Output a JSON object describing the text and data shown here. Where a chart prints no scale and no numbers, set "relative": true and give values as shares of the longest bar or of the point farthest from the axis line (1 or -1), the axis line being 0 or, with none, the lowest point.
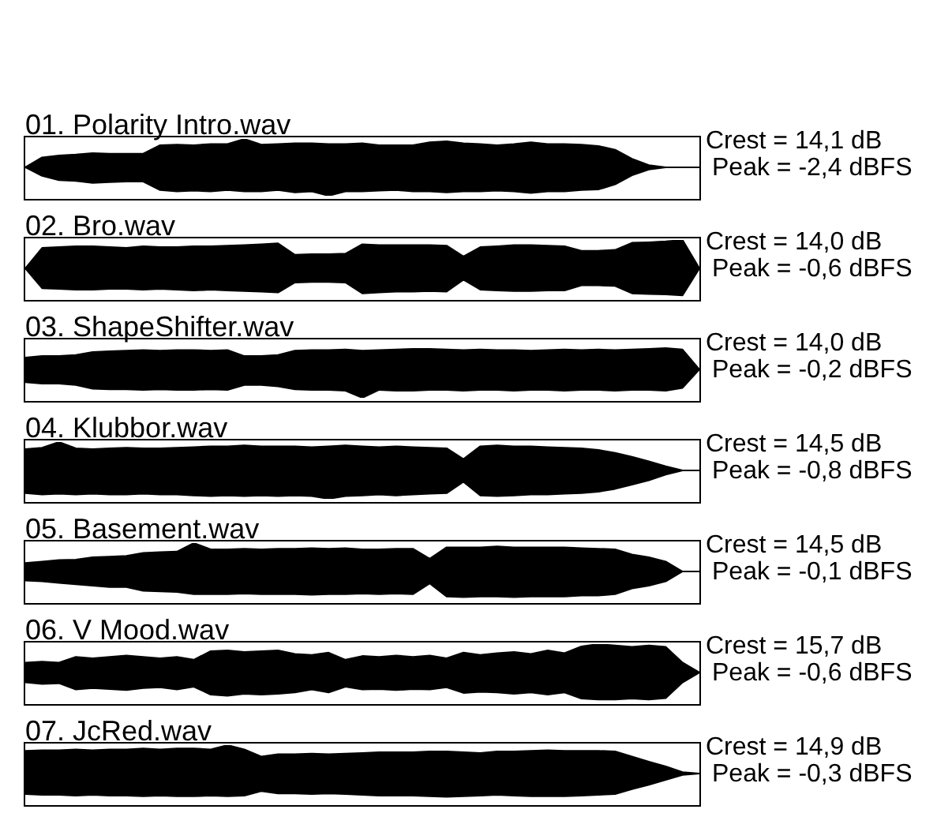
{
  "chart_data": [
    {
      "type": "area",
      "title": "01. Polarity Intro.wav",
      "relative": true,
      "tick_labels": false,
      "annotations": [
        "Crest = 14,1 dB",
        "Peak = -2,4 dBFS"
      ],
      "categories": [
        null,
        null,
        null,
        null,
        null,
        null,
        null,
        null,
        null,
        null,
        null,
        null,
        null,
        null,
        null,
        null,
        null,
        null,
        null,
        null,
        null,
        null,
        null,
        null,
        null,
        null,
        null,
        null,
        null,
        null,
        null,
        null,
        null,
        null,
        null,
        null,
        null,
        null,
        null,
        null,
        null
      ],
      "series": [
        {
          "color": "#000000",
          "values": [
            0,
            0.35,
            0.42,
            0.45,
            0.5,
            0.48,
            0.48,
            0.48,
            0.78,
            0.8,
            0.78,
            0.82,
            0.82,
            1.0,
            0.8,
            0.82,
            0.85,
            0.85,
            0.82,
            0.82,
            0.85,
            0.78,
            0.78,
            0.78,
            0.88,
            0.92,
            0.85,
            0.82,
            0.78,
            0.82,
            0.88,
            0.82,
            0.82,
            0.8,
            0.75,
            0.62,
            0.3,
            0.08,
            0,
            0,
            0
          ]
        },
        {
          "color": "#000000",
          "values": [
            0,
            -0.3,
            -0.45,
            -0.48,
            -0.55,
            -0.52,
            -0.5,
            -0.5,
            -0.8,
            -0.85,
            -0.82,
            -0.85,
            -0.8,
            -0.85,
            -0.85,
            -0.8,
            -0.88,
            -0.85,
            -1,
            -0.85,
            -0.85,
            -0.82,
            -0.8,
            -0.85,
            -0.85,
            -0.88,
            -0.85,
            -0.85,
            -0.82,
            -0.85,
            -0.9,
            -0.85,
            -0.85,
            -0.8,
            -0.78,
            -0.6,
            -0.28,
            -0.08,
            0,
            0,
            0
          ]
        }
      ]
    },
    {
      "type": "area",
      "title": "02. Bro.wav",
      "relative": true,
      "tick_labels": false,
      "annotations": [
        "Crest = 14,0 dB",
        "Peak = -0,6 dBFS"
      ],
      "categories": [
        null,
        null,
        null,
        null,
        null,
        null,
        null,
        null,
        null,
        null,
        null,
        null,
        null,
        null,
        null,
        null,
        null,
        null,
        null,
        null,
        null,
        null,
        null,
        null,
        null,
        null,
        null,
        null,
        null,
        null,
        null,
        null,
        null,
        null,
        null,
        null,
        null,
        null,
        null,
        null,
        null
      ],
      "series": [
        {
          "color": "#000000",
          "values": [
            0,
            0.72,
            0.75,
            0.78,
            0.78,
            0.75,
            0.72,
            0.78,
            0.75,
            0.75,
            0.78,
            0.78,
            0.8,
            0.82,
            0.85,
            0.88,
            0.48,
            0.5,
            0.5,
            0.52,
            0.85,
            0.82,
            0.82,
            0.82,
            0.82,
            0.8,
            0.42,
            0.75,
            0.78,
            0.82,
            0.82,
            0.8,
            0.78,
            0.62,
            0.62,
            0.65,
            0.9,
            0.92,
            0.95,
            1.0,
            0
          ]
        },
        {
          "color": "#000000",
          "values": [
            0,
            -0.7,
            -0.72,
            -0.75,
            -0.75,
            -0.72,
            -0.72,
            -0.75,
            -0.72,
            -0.75,
            -0.78,
            -0.75,
            -0.78,
            -0.8,
            -0.82,
            -0.85,
            -0.5,
            -0.48,
            -0.48,
            -0.5,
            -0.88,
            -0.85,
            -0.82,
            -0.82,
            -0.8,
            -0.82,
            -0.4,
            -0.75,
            -0.78,
            -0.8,
            -0.8,
            -0.78,
            -0.78,
            -0.6,
            -0.6,
            -0.62,
            -0.88,
            -0.9,
            -0.92,
            -0.95,
            0
          ]
        }
      ]
    },
    {
      "type": "area",
      "title": "03. ShapeShifter.wav",
      "relative": true,
      "tick_labels": false,
      "annotations": [
        "Crest = 14,0 dB",
        "Peak = -0,2 dBFS"
      ],
      "categories": [
        null,
        null,
        null,
        null,
        null,
        null,
        null,
        null,
        null,
        null,
        null,
        null,
        null,
        null,
        null,
        null,
        null,
        null,
        null,
        null,
        null,
        null,
        null,
        null,
        null,
        null,
        null,
        null,
        null,
        null,
        null,
        null,
        null,
        null,
        null,
        null,
        null,
        null,
        null,
        null,
        null
      ],
      "series": [
        {
          "color": "#000000",
          "values": [
            0.42,
            0.47,
            0.47,
            0.51,
            0.61,
            0.64,
            0.66,
            0.68,
            0.66,
            0.68,
            0.68,
            0.66,
            0.68,
            0.47,
            0.47,
            0.51,
            0.66,
            0.68,
            0.68,
            0.7,
            0.66,
            0.68,
            0.7,
            0.72,
            0.72,
            0.7,
            0.68,
            0.7,
            0.68,
            0.68,
            0.66,
            0.68,
            0.7,
            0.68,
            0.7,
            0.68,
            0.7,
            0.72,
            0.75,
            0.7,
            0
          ]
        },
        {
          "color": "#000000",
          "values": [
            -0.45,
            -0.5,
            -0.5,
            -0.55,
            -0.68,
            -0.7,
            -0.7,
            -0.72,
            -0.7,
            -0.72,
            -0.72,
            -0.7,
            -0.72,
            -0.55,
            -0.55,
            -0.6,
            -0.7,
            -0.72,
            -0.72,
            -0.75,
            -1,
            -0.72,
            -0.75,
            -0.75,
            -0.72,
            -0.72,
            -0.75,
            -0.72,
            -0.72,
            -0.75,
            -0.72,
            -0.72,
            -0.75,
            -0.72,
            -0.72,
            -0.75,
            -0.72,
            -0.72,
            -0.75,
            -0.65,
            0
          ]
        }
      ]
    },
    {
      "type": "area",
      "title": "04. Klubbor.wav",
      "relative": true,
      "tick_labels": false,
      "annotations": [
        "Crest = 14,5 dB",
        "Peak = -0,8 dBFS"
      ],
      "categories": [
        null,
        null,
        null,
        null,
        null,
        null,
        null,
        null,
        null,
        null,
        null,
        null,
        null,
        null,
        null,
        null,
        null,
        null,
        null,
        null,
        null,
        null,
        null,
        null,
        null,
        null,
        null,
        null,
        null,
        null,
        null,
        null,
        null,
        null,
        null,
        null,
        null,
        null,
        null,
        null,
        null
      ],
      "series": [
        {
          "color": "#000000",
          "values": [
            0.75,
            0.8,
            1.0,
            0.78,
            0.75,
            0.78,
            0.8,
            0.78,
            0.78,
            0.8,
            0.82,
            0.85,
            0.85,
            0.88,
            0.85,
            0.85,
            0.85,
            0.82,
            0.85,
            0.88,
            0.85,
            0.82,
            0.85,
            0.82,
            0.8,
            0.78,
            0.4,
            0.85,
            0.88,
            0.85,
            0.85,
            0.82,
            0.8,
            0.78,
            0.72,
            0.62,
            0.48,
            0.32,
            0.15,
            0,
            0
          ]
        },
        {
          "color": "#000000",
          "values": [
            -0.8,
            -0.85,
            -0.82,
            -0.85,
            -0.82,
            -0.85,
            -0.85,
            -0.82,
            -0.85,
            -0.85,
            -0.88,
            -0.9,
            -0.88,
            -0.9,
            -0.88,
            -0.9,
            -0.88,
            -0.9,
            -1,
            -0.9,
            -0.88,
            -0.85,
            -0.88,
            -0.85,
            -0.82,
            -0.8,
            -0.4,
            -0.88,
            -0.9,
            -0.88,
            -0.85,
            -0.85,
            -0.82,
            -0.8,
            -0.75,
            -0.65,
            -0.5,
            -0.35,
            -0.15,
            0,
            0
          ]
        }
      ]
    },
    {
      "type": "area",
      "title": "05. Basement.wav",
      "relative": true,
      "tick_labels": false,
      "annotations": [
        "Crest = 14,5 dB",
        "Peak = -0,1 dBFS"
      ],
      "categories": [
        null,
        null,
        null,
        null,
        null,
        null,
        null,
        null,
        null,
        null,
        null,
        null,
        null,
        null,
        null,
        null,
        null,
        null,
        null,
        null,
        null,
        null,
        null,
        null,
        null,
        null,
        null,
        null,
        null,
        null,
        null,
        null,
        null,
        null,
        null,
        null,
        null,
        null,
        null,
        null,
        null
      ],
      "series": [
        {
          "color": "#000000",
          "values": [
            0.3,
            0.35,
            0.4,
            0.42,
            0.5,
            0.52,
            0.55,
            0.65,
            0.68,
            0.7,
            1.0,
            0.78,
            0.78,
            0.8,
            0.78,
            0.8,
            0.8,
            0.82,
            0.8,
            0.82,
            0.78,
            0.78,
            0.8,
            0.8,
            0.45,
            0.85,
            0.85,
            0.85,
            0.88,
            0.85,
            0.85,
            0.85,
            0.85,
            0.82,
            0.8,
            0.78,
            0.6,
            0.5,
            0.35,
            0,
            0
          ]
        },
        {
          "color": "#000000",
          "values": [
            -0.32,
            -0.35,
            -0.4,
            -0.45,
            -0.5,
            -0.55,
            -0.55,
            -0.68,
            -0.7,
            -0.72,
            -0.8,
            -0.8,
            -0.8,
            -0.78,
            -0.8,
            -0.8,
            -0.8,
            -0.82,
            -0.8,
            -0.8,
            -0.78,
            -0.8,
            -0.78,
            -0.8,
            -0.42,
            -0.88,
            -0.9,
            -0.88,
            -0.88,
            -0.9,
            -0.88,
            -0.88,
            -0.88,
            -0.85,
            -0.85,
            -0.8,
            -0.6,
            -0.5,
            -0.35,
            0,
            0
          ]
        }
      ]
    },
    {
      "type": "area",
      "title": "06. V Mood.wav",
      "relative": true,
      "tick_labels": false,
      "annotations": [
        "Crest = 15,7 dB",
        "Peak = -0,6 dBFS"
      ],
      "categories": [
        null,
        null,
        null,
        null,
        null,
        null,
        null,
        null,
        null,
        null,
        null,
        null,
        null,
        null,
        null,
        null,
        null,
        null,
        null,
        null,
        null,
        null,
        null,
        null,
        null,
        null,
        null,
        null,
        null,
        null,
        null,
        null,
        null,
        null,
        null,
        null,
        null,
        null,
        null,
        null,
        null
      ],
      "series": [
        {
          "color": "#000000",
          "values": [
            0.35,
            0.38,
            0.35,
            0.55,
            0.5,
            0.55,
            0.6,
            0.55,
            0.5,
            0.55,
            0.45,
            0.75,
            0.78,
            0.72,
            0.75,
            0.78,
            0.65,
            0.62,
            0.7,
            0.45,
            0.58,
            0.55,
            0.6,
            0.55,
            0.6,
            0.5,
            0.7,
            0.62,
            0.68,
            0.72,
            0.65,
            0.78,
            0.68,
            0.92,
            1.0,
            0.95,
            0.9,
            0.95,
            0.9,
            0.35,
            0
          ]
        },
        {
          "color": "#000000",
          "values": [
            -0.35,
            -0.4,
            -0.38,
            -0.6,
            -0.55,
            -0.58,
            -0.62,
            -0.55,
            -0.52,
            -0.6,
            -0.5,
            -0.78,
            -0.82,
            -0.75,
            -0.78,
            -0.75,
            -0.7,
            -0.6,
            -0.7,
            -0.5,
            -0.6,
            -0.58,
            -0.62,
            -0.58,
            -0.6,
            -0.52,
            -0.72,
            -0.68,
            -0.7,
            -0.75,
            -0.7,
            -0.78,
            -0.7,
            -0.92,
            -0.95,
            -0.95,
            -0.92,
            -0.95,
            -0.9,
            -0.35,
            0
          ]
        }
      ]
    },
    {
      "type": "area",
      "title": "07. JcRed.wav",
      "relative": true,
      "tick_labels": false,
      "annotations": [
        "Crest = 14,9 dB",
        "Peak = -0,3 dBFS"
      ],
      "categories": [
        null,
        null,
        null,
        null,
        null,
        null,
        null,
        null,
        null,
        null,
        null,
        null,
        null,
        null,
        null,
        null,
        null,
        null,
        null,
        null,
        null,
        null,
        null,
        null,
        null,
        null,
        null,
        null,
        null,
        null,
        null,
        null,
        null,
        null,
        null,
        null,
        null,
        null,
        null,
        null,
        null
      ],
      "series": [
        {
          "color": "#000000",
          "values": [
            0.8,
            0.82,
            0.82,
            0.85,
            0.82,
            0.85,
            0.85,
            0.88,
            0.85,
            0.88,
            0.88,
            0.85,
            1.0,
            0.85,
            0.6,
            0.68,
            0.68,
            0.7,
            0.68,
            0.7,
            0.72,
            0.75,
            0.75,
            0.75,
            0.78,
            0.78,
            0.75,
            0.72,
            0.78,
            0.78,
            0.8,
            0.82,
            0.8,
            0.8,
            0.8,
            0.78,
            0.6,
            0.42,
            0.25,
            0.05,
            0
          ]
        },
        {
          "color": "#000000",
          "values": [
            -0.72,
            -0.75,
            -0.75,
            -0.78,
            -0.75,
            -0.78,
            -0.78,
            -0.8,
            -0.78,
            -0.8,
            -0.8,
            -0.78,
            -0.8,
            -0.78,
            -0.62,
            -0.7,
            -0.7,
            -0.72,
            -0.7,
            -0.72,
            -0.75,
            -0.78,
            -0.78,
            -0.78,
            -0.8,
            -0.82,
            -0.8,
            -0.78,
            -0.75,
            -0.78,
            -0.8,
            -0.8,
            -0.8,
            -0.78,
            -0.75,
            -0.72,
            -0.55,
            -0.4,
            -0.22,
            -0.05,
            0
          ]
        }
      ]
    }
  ]
}
